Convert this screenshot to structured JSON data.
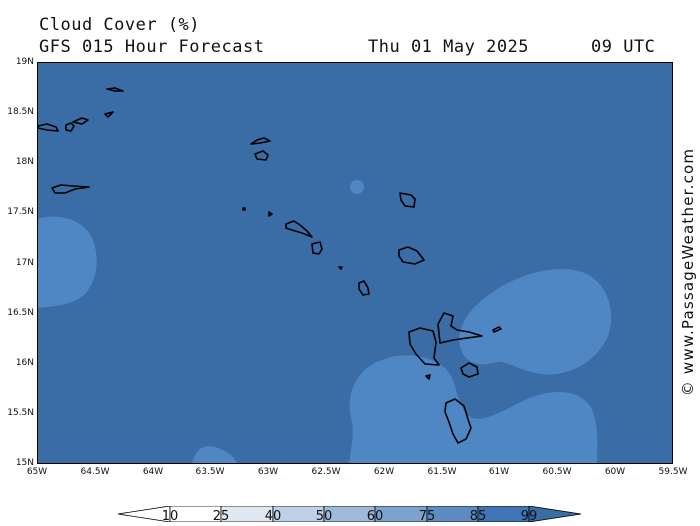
{
  "header": {
    "title": "Cloud Cover (%)",
    "subtitle": "GFS 015 Hour Forecast",
    "date": "Thu 01 May 2025",
    "time": "09 UTC"
  },
  "watermark": "© www.PassageWeather.com",
  "map": {
    "lat_labels": [
      "19N",
      "18.5N",
      "18N",
      "17.5N",
      "17N",
      "16.5N",
      "16N",
      "15.5N",
      "15N"
    ],
    "lon_labels": [
      "65W",
      "64.5W",
      "64W",
      "63.5W",
      "63W",
      "62.5W",
      "62W",
      "61.5W",
      "61W",
      "60.5W",
      "60W",
      "59.5W"
    ],
    "colors": {
      "background": "#3a6ca6",
      "cloud_patch": "#4f86c4",
      "coastline": "#000000",
      "frame": "#000000"
    }
  },
  "legend": {
    "labels": [
      "10",
      "25",
      "40",
      "50",
      "60",
      "75",
      "85",
      "99"
    ],
    "colors": [
      "#ffffff",
      "#ffffff",
      "#dfe8f3",
      "#bfd1e7",
      "#9fb9da",
      "#7ea2ce",
      "#5e8bc1",
      "#3f74b5",
      "#3a6ca6"
    ]
  }
}
